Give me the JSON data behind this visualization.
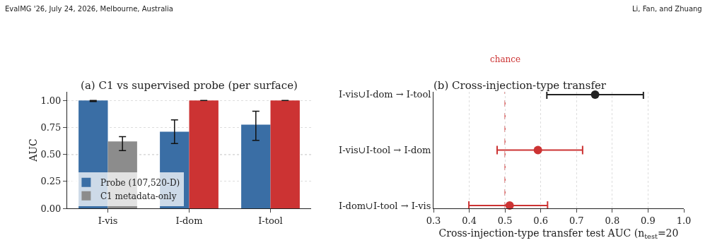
{
  "chart_data": [
    {
      "type": "bar",
      "title": "(a) C1 vs supervised probe (per surface)",
      "ylabel": "AUC",
      "categories": [
        "I-vis",
        "I-dom",
        "I-tool"
      ],
      "series": [
        {
          "name": "Probe (107,520-D)",
          "color": "#3a6ea5",
          "values": [
            1.0,
            0.71,
            0.775
          ],
          "errors": [
            [
              0.99,
              1.0
            ],
            [
              0.6,
              0.82
            ],
            [
              0.63,
              0.9
            ]
          ]
        },
        {
          "name": "C1 metadata-only",
          "color": "#8c8c8c",
          "colors": [
            "#8c8c8c",
            "#cc3333",
            "#cc3333"
          ],
          "values": [
            0.62,
            1.0,
            1.0
          ],
          "errors": [
            [
              0.535,
              0.665
            ],
            null,
            null
          ]
        }
      ],
      "ylim": [
        0,
        1.08
      ],
      "yticks": [
        {
          "value": 0,
          "label": "0.00"
        },
        {
          "value": 0.25,
          "label": "0.25"
        },
        {
          "value": 0.5,
          "label": "0.50"
        },
        {
          "value": 0.75,
          "label": "0.75"
        },
        {
          "value": 1,
          "label": "1.00"
        }
      ],
      "grid": "y",
      "legend": "bottom left",
      "ref_lines": [
        {
          "axis": "y",
          "value": 0.5,
          "color": "#999999",
          "line_style": "dotted"
        }
      ],
      "annotations": [
        "EvalMG '26, July 24, 2026, Melbourne, Australia"
      ]
    },
    {
      "type": "scatter",
      "orientation": "horizontal",
      "title": "(b) Cross-injection-type transfer",
      "xlabel": "Cross-injection-type transfer test AUC (n$_{test}$=20",
      "categories": [
        "I-vis∪I-dom → I-tool",
        "I-vis∪I-tool → I-dom",
        "I-dom∪I-tool → I-vis"
      ],
      "values": [
        0.752,
        0.592,
        0.513
      ],
      "colors": [
        "#222222",
        "#cc3333",
        "#cc3333"
      ],
      "errors": [
        [
          0.617,
          0.887
        ],
        [
          0.478,
          0.717
        ],
        [
          0.399,
          0.619
        ]
      ],
      "xlim": [
        0.3,
        1.0
      ],
      "xticks": [
        0.3,
        0.4,
        0.5,
        0.6,
        0.7,
        0.8,
        0.9,
        {
          "value": 1,
          "label": "1.0"
        }
      ],
      "grid": "x",
      "marker": "circle",
      "ref_lines": [
        {
          "axis": "x",
          "value": 0.5,
          "label": "chance",
          "color": "#cc3333",
          "line_style": "dashed"
        }
      ],
      "annotations": [
        "Li, Fan, and Zhuang"
      ]
    }
  ]
}
